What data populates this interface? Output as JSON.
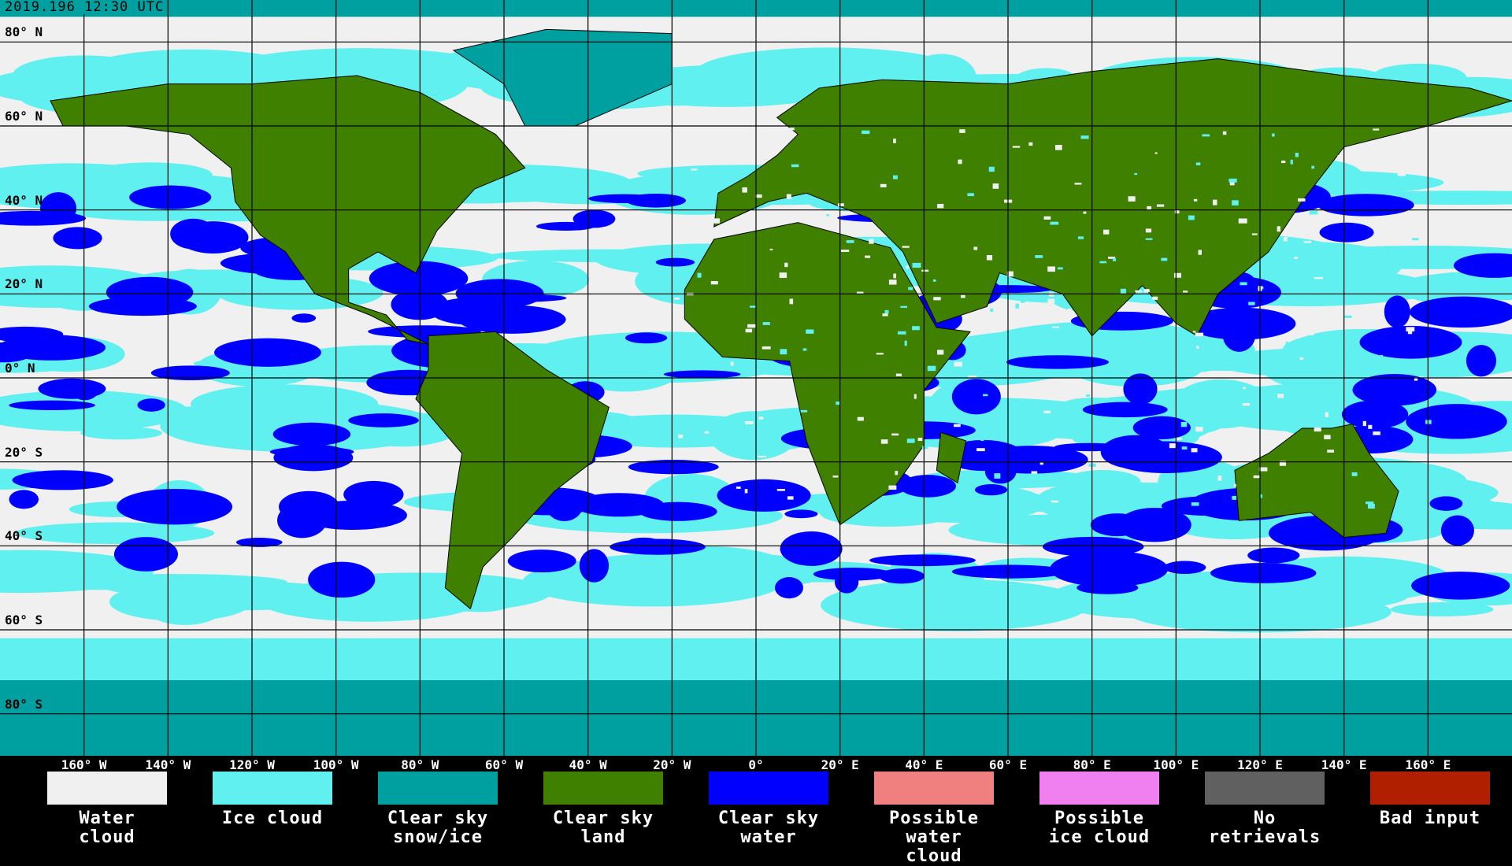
{
  "title": "2019.196 12:30 UTC",
  "lat_labels": [
    "80° N",
    "60° N",
    "40° N",
    "20° N",
    "0° N",
    "20° S",
    "40° S",
    "60° S",
    "80° S"
  ],
  "lon_labels": [
    "160° W",
    "140° W",
    "120° W",
    "100° W",
    "80° W",
    "60° W",
    "40° W",
    "20° W",
    "0°",
    "20° E",
    "40° E",
    "60° E",
    "80° E",
    "100° E",
    "120° E",
    "140° E",
    "160° E"
  ],
  "legend": [
    {
      "label": "Water cloud",
      "color": "#f0f0f0"
    },
    {
      "label": "Ice cloud",
      "color": "#60f0f0"
    },
    {
      "label": "Clear sky\nsnow/ice",
      "color": "#00a0a0"
    },
    {
      "label": "Clear sky\nland",
      "color": "#408000"
    },
    {
      "label": "Clear sky\nwater",
      "color": "#0000ff"
    },
    {
      "label": "Possible\nwater cloud",
      "color": "#f08080"
    },
    {
      "label": "Possible\nice cloud",
      "color": "#f080f0"
    },
    {
      "label": "No retrievals",
      "color": "#606060"
    },
    {
      "label": "Bad input",
      "color": "#b02000"
    }
  ]
}
